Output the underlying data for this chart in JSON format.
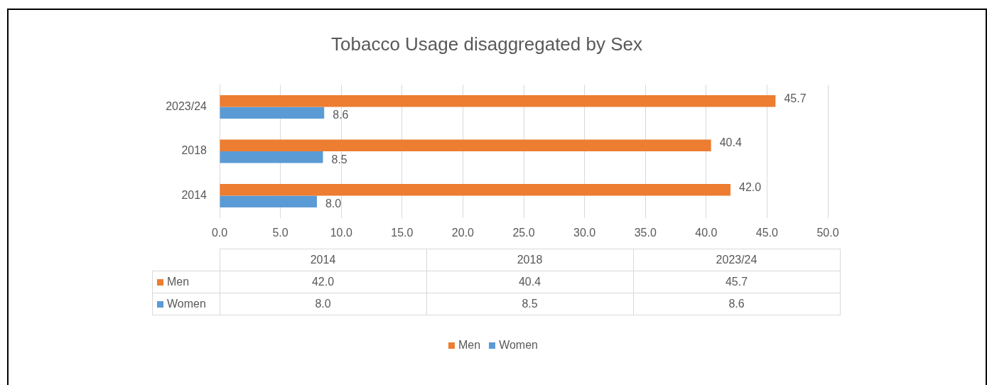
{
  "chart_data": {
    "type": "bar",
    "orientation": "horizontal",
    "title": "Tobacco Usage disaggregated by Sex",
    "categories": [
      "2023/24",
      "2018",
      "2014"
    ],
    "series": [
      {
        "name": "Men",
        "color": "#ed7d31",
        "values": [
          45.7,
          40.4,
          42.0
        ],
        "value_labels": [
          "45.7",
          "40.4",
          "42.0"
        ]
      },
      {
        "name": "Women",
        "color": "#5b9bd5",
        "values": [
          8.6,
          8.5,
          8.0
        ],
        "value_labels": [
          "8.6",
          "8.5",
          "8.0"
        ]
      }
    ],
    "xlim": [
      0,
      50
    ],
    "xticks": [
      {
        "value": 0,
        "label": "0.0"
      },
      {
        "value": 5,
        "label": "5.0"
      },
      {
        "value": 10,
        "label": "10.0"
      },
      {
        "value": 15,
        "label": "15.0"
      },
      {
        "value": 20,
        "label": "20.0"
      },
      {
        "value": 25,
        "label": "25.0"
      },
      {
        "value": 30,
        "label": "30.0"
      },
      {
        "value": 35,
        "label": "35.0"
      },
      {
        "value": 40,
        "label": "40.0"
      },
      {
        "value": 45,
        "label": "45.0"
      },
      {
        "value": 50,
        "label": "50.0"
      }
    ],
    "grid": "x",
    "legend": "bottom"
  }
}
